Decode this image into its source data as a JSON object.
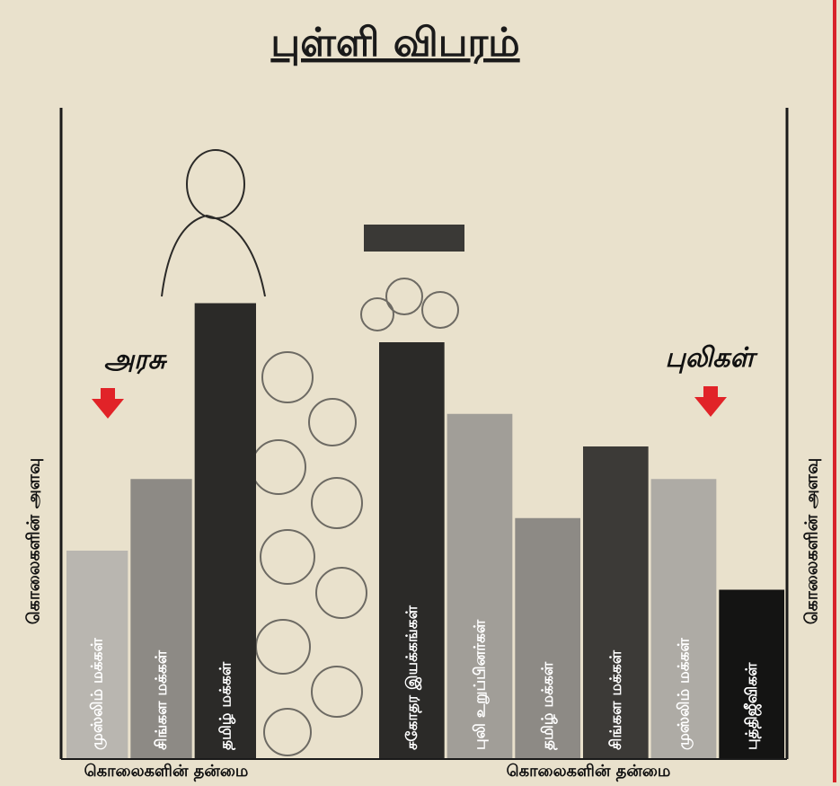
{
  "title": "புள்ளி விபரம்",
  "chart_data": [
    {
      "type": "bar",
      "group_label": "அரசு",
      "categories": [
        "முஸ்லிம் மக்கள்",
        "சிங்கள மக்கள்",
        "தமிழ் மக்கள்"
      ],
      "values": [
        32,
        43,
        70
      ],
      "colors": [
        "#b9b6b0",
        "#8d8a85",
        "#2b2a28"
      ],
      "ylim": [
        0,
        100
      ],
      "ylabel": "கொலைகளின் அளவு",
      "xlabel": "கொலைகளின் தன்மை"
    },
    {
      "type": "bar",
      "group_label": "புலிகள்",
      "categories": [
        "சகோதர இயக்கங்கள்",
        "புலி உறுப்பினர்கள்",
        "தமிழ் மக்கள்",
        "சிங்கள மக்கள்",
        "முஸ்லிம் மக்கள்",
        "புத்திஜீவிகள்"
      ],
      "values": [
        64,
        53,
        37,
        48,
        43,
        26
      ],
      "colors": [
        "#2b2a28",
        "#a19e98",
        "#8d8a85",
        "#3c3a37",
        "#aeaba5",
        "#141413"
      ],
      "ylim": [
        0,
        100
      ],
      "ylabel": "கொலைகளின் அளவு",
      "xlabel": "கொலைகளின் தன்மை"
    }
  ]
}
